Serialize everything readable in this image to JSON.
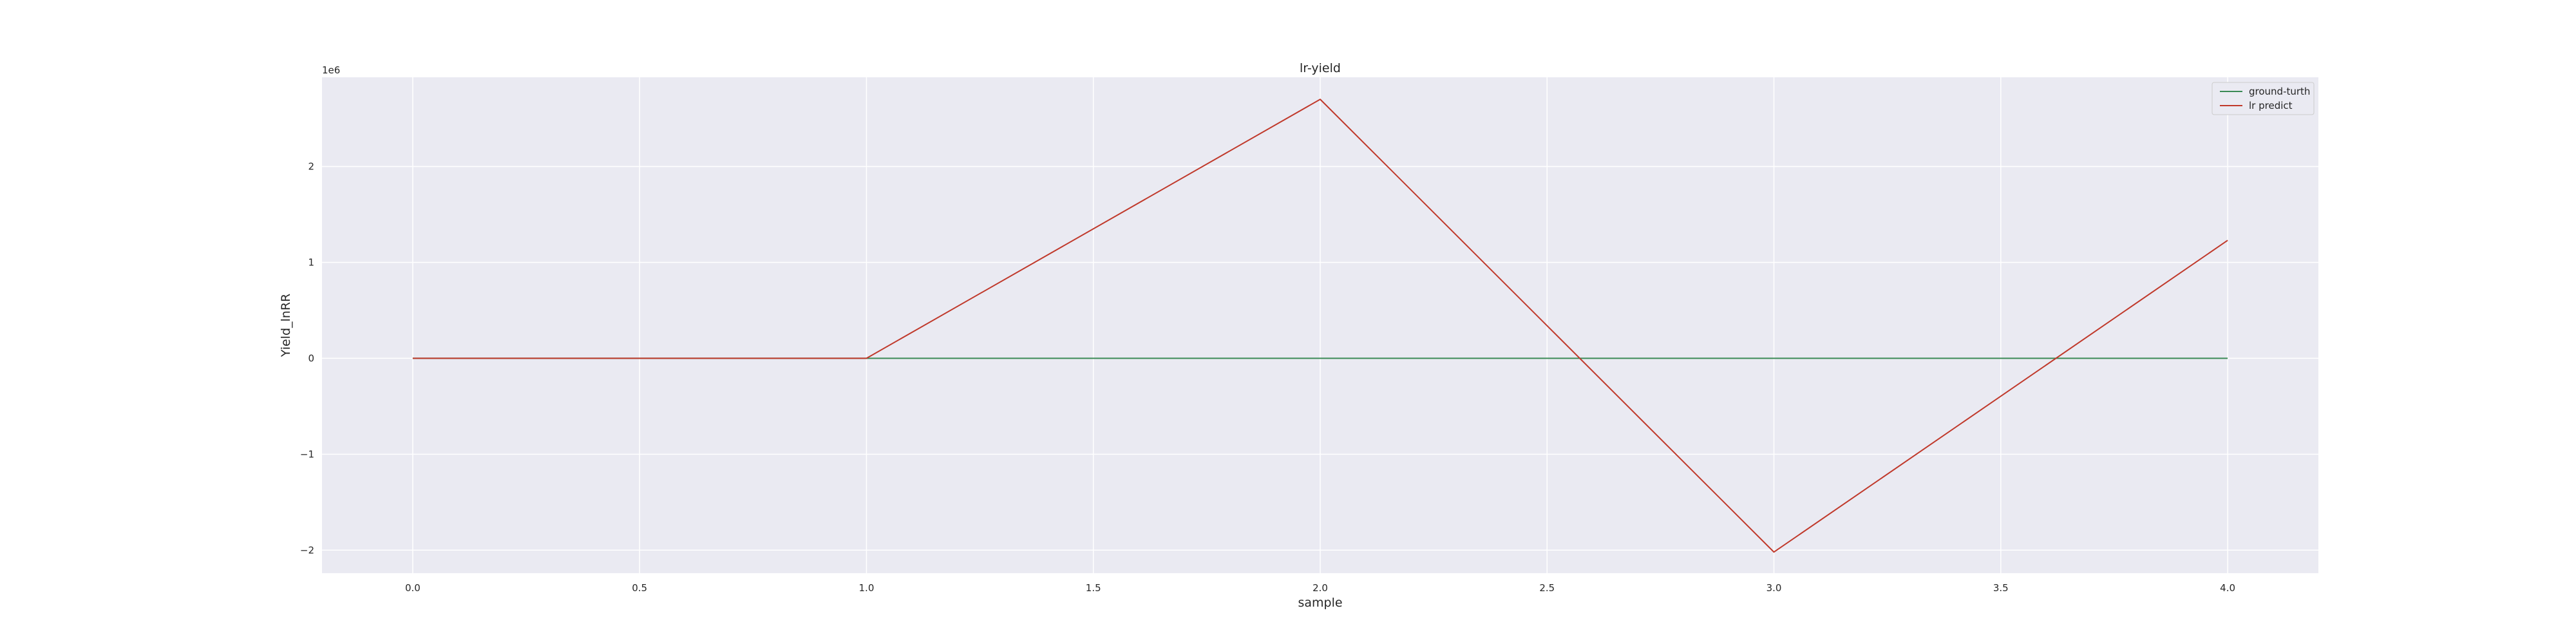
{
  "chart_data": {
    "type": "line",
    "title": "lr-yield",
    "xlabel": "sample",
    "ylabel": "Yield_lnRR",
    "y_offset_label": "1e6",
    "x": [
      0,
      1,
      2,
      3,
      4
    ],
    "series": [
      {
        "name": "ground-turth",
        "color": "#3a8a55",
        "values": [
          0,
          0,
          0,
          0,
          0
        ]
      },
      {
        "name": "lr predict",
        "color": "#c0392b",
        "values": [
          0,
          0,
          2700000,
          -2020000,
          1230000
        ]
      }
    ],
    "xlim": [
      -0.2,
      4.2
    ],
    "ylim": [
      -2240000,
      2930000
    ],
    "x_ticks": [
      0.0,
      0.5,
      1.0,
      1.5,
      2.0,
      2.5,
      3.0,
      3.5,
      4.0
    ],
    "x_tick_labels": [
      "0.0",
      "0.5",
      "1.0",
      "1.5",
      "2.0",
      "2.5",
      "3.0",
      "3.5",
      "4.0"
    ],
    "y_ticks": [
      -2000000,
      -1000000,
      0,
      1000000,
      2000000
    ],
    "y_tick_labels": [
      "−2",
      "−1",
      "0",
      "1",
      "2"
    ],
    "grid": true,
    "legend_position": "top-right",
    "colors": {
      "plot_background": "#eaeaf2",
      "grid": "#ffffff"
    }
  }
}
